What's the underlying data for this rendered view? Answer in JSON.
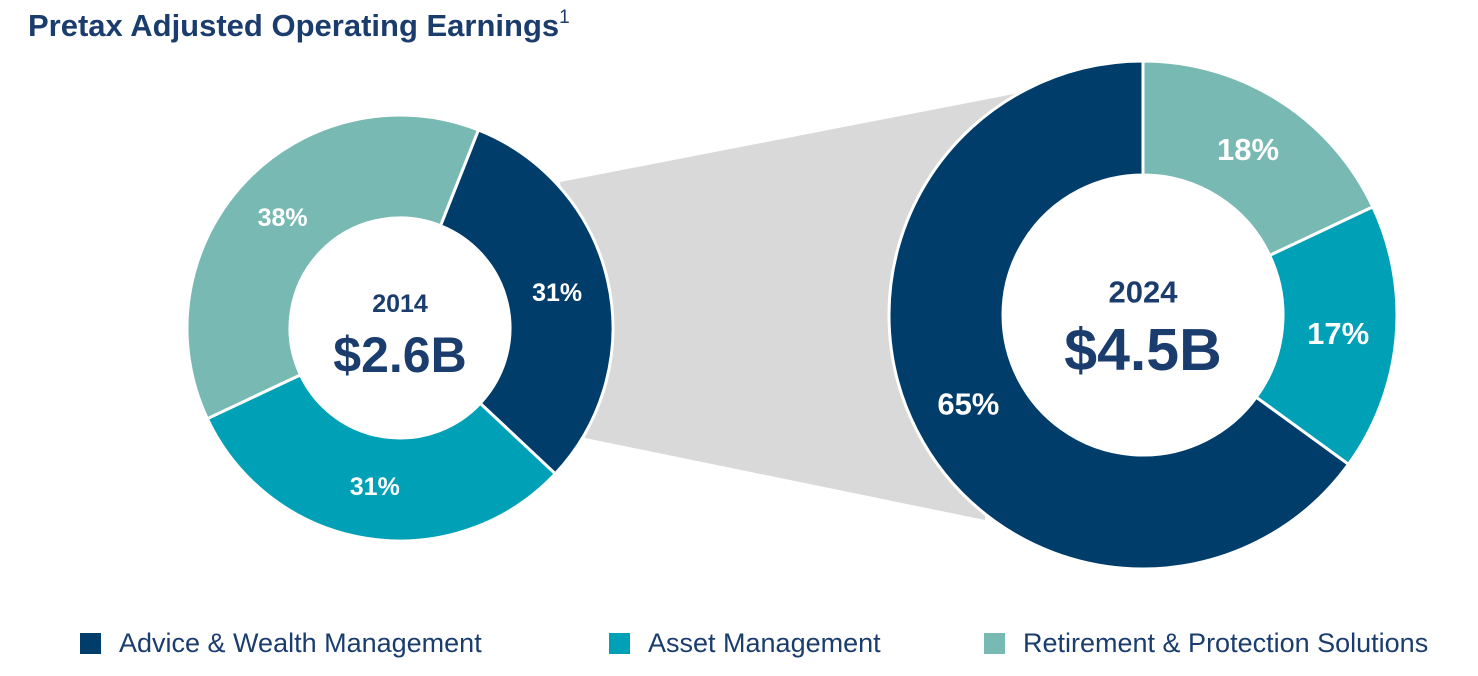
{
  "title": "Pretax Adjusted Operating Earnings",
  "title_footnote": "1",
  "colors": {
    "advice": "#003d6b",
    "asset": "#00a0b7",
    "retirement": "#78b9b3",
    "connector": "#d9d9d9",
    "text_dark": "#1b3d6e"
  },
  "legend": [
    {
      "label": "Advice & Wealth Management",
      "color_key": "advice",
      "icon": "square-swatch"
    },
    {
      "label": "Asset Management",
      "color_key": "asset",
      "icon": "square-swatch"
    },
    {
      "label": "Retirement & Protection Solutions",
      "color_key": "retirement",
      "icon": "square-swatch"
    }
  ],
  "chart_data": [
    {
      "type": "pie",
      "year": "2014",
      "total": "$2.6B",
      "slices": [
        {
          "name": "Advice & Wealth Management",
          "value": 31,
          "label": "31%",
          "color_key": "advice"
        },
        {
          "name": "Asset Management",
          "value": 31,
          "label": "31%",
          "color_key": "asset"
        },
        {
          "name": "Retirement & Protection Solutions",
          "value": 38,
          "label": "38%",
          "color_key": "retirement"
        }
      ]
    },
    {
      "type": "pie",
      "year": "2024",
      "total": "$4.5B",
      "slices": [
        {
          "name": "Retirement & Protection Solutions",
          "value": 18,
          "label": "18%",
          "color_key": "retirement"
        },
        {
          "name": "Asset Management",
          "value": 17,
          "label": "17%",
          "color_key": "asset"
        },
        {
          "name": "Advice & Wealth Management",
          "value": 65,
          "label": "65%",
          "color_key": "advice"
        }
      ]
    }
  ]
}
